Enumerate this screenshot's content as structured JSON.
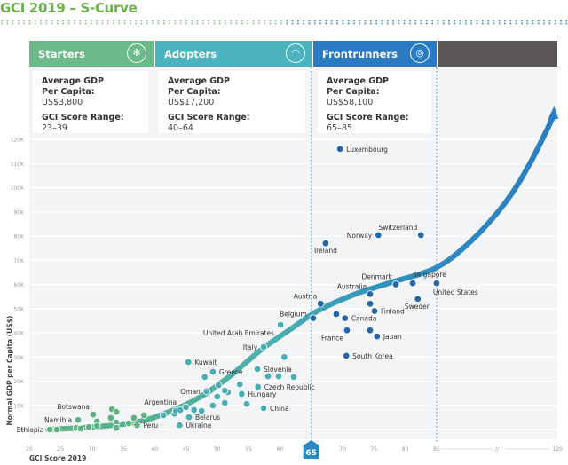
{
  "title": "GCI 2019 – S-Curve",
  "colors": {
    "starters": "#6cb98a",
    "adopters": "#4bb3bd",
    "frontrunners": "#2a79c3",
    "beyond": "#5b5657",
    "starters_dot": "#5cb281",
    "adopters_dot": "#4aaeb7",
    "frontrunners_dot": "#2466a8",
    "title": "#6cb04a"
  },
  "stages": [
    {
      "name": "Starters",
      "icon": "windmill-icon",
      "gdp_label": "Average GDP",
      "gdp_label2": "Per Capita:",
      "gdp": "US$3,800",
      "range_label": "GCI Score Range:",
      "range": "23–39"
    },
    {
      "name": "Adopters",
      "icon": "gauge-icon",
      "gdp_label": "Average GDP",
      "gdp_label2": "Per Capita:",
      "gdp": "US$17,200",
      "range_label": "GCI Score Range:",
      "range": "40–64"
    },
    {
      "name": "Frontrunners",
      "icon": "medal-icon",
      "gdp_label": "Average GDP",
      "gdp_label2": "Per Capita:",
      "gdp": "US$58,100",
      "range_label": "GCI Score Range:",
      "range": "65–85"
    }
  ],
  "chart_data": {
    "type": "scatter",
    "xlabel": "GCI Score 2019",
    "ylabel": "Normal GDP per Capita (US$)",
    "xlim": [
      20,
      120
    ],
    "x_ticks": [
      "20",
      "25",
      "30",
      "35",
      "40",
      "45",
      "50",
      "55",
      "60",
      "65",
      "70",
      "75",
      "80",
      "85",
      "//",
      "120"
    ],
    "x_break": "85–120 axis break",
    "highlight_x": "65",
    "ylim": [
      0,
      120000
    ],
    "y_ticks": [
      "0",
      "10K",
      "20K",
      "30K",
      "40K",
      "50K",
      "60K",
      "70K",
      "80K",
      "90K",
      "100K",
      "110K",
      "120K"
    ],
    "grid": true,
    "trend_curve": [
      [
        23,
        0
      ],
      [
        30,
        1000
      ],
      [
        37,
        3000
      ],
      [
        42,
        7000
      ],
      [
        47,
        13000
      ],
      [
        52,
        22000
      ],
      [
        57,
        33000
      ],
      [
        62,
        42000
      ],
      [
        66,
        49000
      ],
      [
        72,
        56000
      ],
      [
        78,
        61000
      ],
      [
        85,
        67000
      ],
      [
        95,
        78000
      ],
      [
        105,
        94000
      ],
      [
        112,
        110000
      ],
      [
        119,
        130000
      ]
    ],
    "points": [
      {
        "x": 23.3,
        "y": 0,
        "s": "starters",
        "label": "Ethiopia",
        "pos": "left"
      },
      {
        "x": 24.4,
        "y": 0,
        "s": "starters"
      },
      {
        "x": 27.5,
        "y": 700,
        "s": "starters"
      },
      {
        "x": 28.2,
        "y": 400,
        "s": "starters"
      },
      {
        "x": 29.5,
        "y": 1000,
        "s": "starters"
      },
      {
        "x": 27.8,
        "y": 4000,
        "s": "starters",
        "label": "Namibia",
        "pos": "left"
      },
      {
        "x": 30.2,
        "y": 6200,
        "s": "starters",
        "label": "Botswana",
        "pos": "above-left"
      },
      {
        "x": 30.8,
        "y": 3300,
        "s": "starters"
      },
      {
        "x": 30.8,
        "y": 1500,
        "s": "starters"
      },
      {
        "x": 33.2,
        "y": 8400,
        "s": "starters"
      },
      {
        "x": 33.9,
        "y": 7300,
        "s": "starters"
      },
      {
        "x": 33,
        "y": 4800,
        "s": "starters"
      },
      {
        "x": 33.9,
        "y": 2900,
        "s": "starters"
      },
      {
        "x": 33.9,
        "y": 700,
        "s": "starters"
      },
      {
        "x": 35.9,
        "y": 2600,
        "s": "starters"
      },
      {
        "x": 36.7,
        "y": 4800,
        "s": "starters"
      },
      {
        "x": 37.2,
        "y": 1800,
        "s": "starters",
        "label": "Peru",
        "pos": "right"
      },
      {
        "x": 38.3,
        "y": 5900,
        "s": "starters"
      },
      {
        "x": 41.4,
        "y": 5900,
        "s": "adopters"
      },
      {
        "x": 43.2,
        "y": 6500,
        "s": "adopters"
      },
      {
        "x": 43.4,
        "y": 7700,
        "s": "adopters"
      },
      {
        "x": 44.1,
        "y": 8100,
        "s": "adopters",
        "label": "Argentina",
        "pos": "above-left"
      },
      {
        "x": 45,
        "y": 9200,
        "s": "adopters"
      },
      {
        "x": 46.3,
        "y": 8100,
        "s": "adopters"
      },
      {
        "x": 47.5,
        "y": 7700,
        "s": "adopters"
      },
      {
        "x": 45.5,
        "y": 5100,
        "s": "adopters",
        "label": "Belarus",
        "pos": "right"
      },
      {
        "x": 44,
        "y": 1800,
        "s": "adopters",
        "label": "Ukraine",
        "pos": "right"
      },
      {
        "x": 45.4,
        "y": 27900,
        "s": "adopters",
        "label": "Kuwait",
        "pos": "right"
      },
      {
        "x": 49.3,
        "y": 23900,
        "s": "adopters",
        "label": "Greece",
        "pos": "right"
      },
      {
        "x": 48,
        "y": 21700,
        "s": "adopters"
      },
      {
        "x": 48.3,
        "y": 15800,
        "s": "adopters",
        "label": "Oman",
        "pos": "left"
      },
      {
        "x": 50.2,
        "y": 18300,
        "s": "adopters"
      },
      {
        "x": 53.6,
        "y": 18700,
        "s": "adopters"
      },
      {
        "x": 53.9,
        "y": 14700,
        "s": "adopters",
        "label": "Hungary",
        "pos": "right"
      },
      {
        "x": 51.7,
        "y": 15400,
        "s": "adopters"
      },
      {
        "x": 50,
        "y": 13600,
        "s": "adopters"
      },
      {
        "x": 51.2,
        "y": 16100,
        "s": "adopters"
      },
      {
        "x": 51.2,
        "y": 11000,
        "s": "adopters"
      },
      {
        "x": 49.3,
        "y": 9900,
        "s": "adopters"
      },
      {
        "x": 54.7,
        "y": 10600,
        "s": "adopters"
      },
      {
        "x": 57.4,
        "y": 8800,
        "s": "adopters",
        "label": "China",
        "pos": "right"
      },
      {
        "x": 56.4,
        "y": 25000,
        "s": "adopters",
        "label": "Slovenia",
        "pos": "right"
      },
      {
        "x": 56.5,
        "y": 17600,
        "s": "adopters",
        "label": "Czech Republic",
        "pos": "right"
      },
      {
        "x": 58.1,
        "y": 22000,
        "s": "adopters"
      },
      {
        "x": 59.8,
        "y": 22000,
        "s": "adopters"
      },
      {
        "x": 62.2,
        "y": 21700,
        "s": "adopters"
      },
      {
        "x": 60.7,
        "y": 30000,
        "s": "adopters"
      },
      {
        "x": 57.4,
        "y": 34100,
        "s": "adopters",
        "label": "Italy",
        "pos": "left"
      },
      {
        "x": 60.1,
        "y": 43300,
        "s": "adopters",
        "label": "United Arab Emirates",
        "pos": "left-below"
      },
      {
        "x": 65.3,
        "y": 46000,
        "s": "frontrunners",
        "label": "Belgium",
        "pos": "left-above"
      },
      {
        "x": 66.5,
        "y": 52000,
        "s": "frontrunners",
        "label": "Austria",
        "pos": "above-left"
      },
      {
        "x": 69.6,
        "y": 116000,
        "s": "frontrunners",
        "label": "Luxembourg",
        "pos": "right"
      },
      {
        "x": 67.3,
        "y": 77000,
        "s": "frontrunners",
        "label": "Ireland",
        "pos": "below"
      },
      {
        "x": 75.7,
        "y": 80400,
        "s": "frontrunners",
        "label": "Norway",
        "pos": "left"
      },
      {
        "x": 82.5,
        "y": 80400,
        "s": "frontrunners",
        "label": "Switzerland",
        "pos": "above-left"
      },
      {
        "x": 78.5,
        "y": 60000,
        "s": "frontrunners",
        "label": "Denmark",
        "pos": "above-left"
      },
      {
        "x": 81.2,
        "y": 60500,
        "s": "frontrunners",
        "label": "Singapore",
        "pos": "above-right"
      },
      {
        "x": 85,
        "y": 60500,
        "s": "frontrunners",
        "label": "United States",
        "pos": "below-right"
      },
      {
        "x": 82,
        "y": 54000,
        "s": "frontrunners",
        "label": "Sweden",
        "pos": "below"
      },
      {
        "x": 74.4,
        "y": 56000,
        "s": "frontrunners",
        "label": "Australia",
        "pos": "above-left"
      },
      {
        "x": 74.4,
        "y": 52000,
        "s": "frontrunners"
      },
      {
        "x": 75.1,
        "y": 49000,
        "s": "frontrunners",
        "label": "Finland",
        "pos": "right"
      },
      {
        "x": 69,
        "y": 47700,
        "s": "frontrunners"
      },
      {
        "x": 70.4,
        "y": 46000,
        "s": "frontrunners",
        "label": "Canada",
        "pos": "right"
      },
      {
        "x": 70.7,
        "y": 41000,
        "s": "frontrunners",
        "label": "France",
        "pos": "below-left"
      },
      {
        "x": 74.4,
        "y": 41000,
        "s": "frontrunners"
      },
      {
        "x": 75.5,
        "y": 38500,
        "s": "frontrunners",
        "label": "Japan",
        "pos": "right"
      },
      {
        "x": 70.6,
        "y": 30500,
        "s": "frontrunners",
        "label": "South Korea",
        "pos": "right"
      }
    ]
  }
}
